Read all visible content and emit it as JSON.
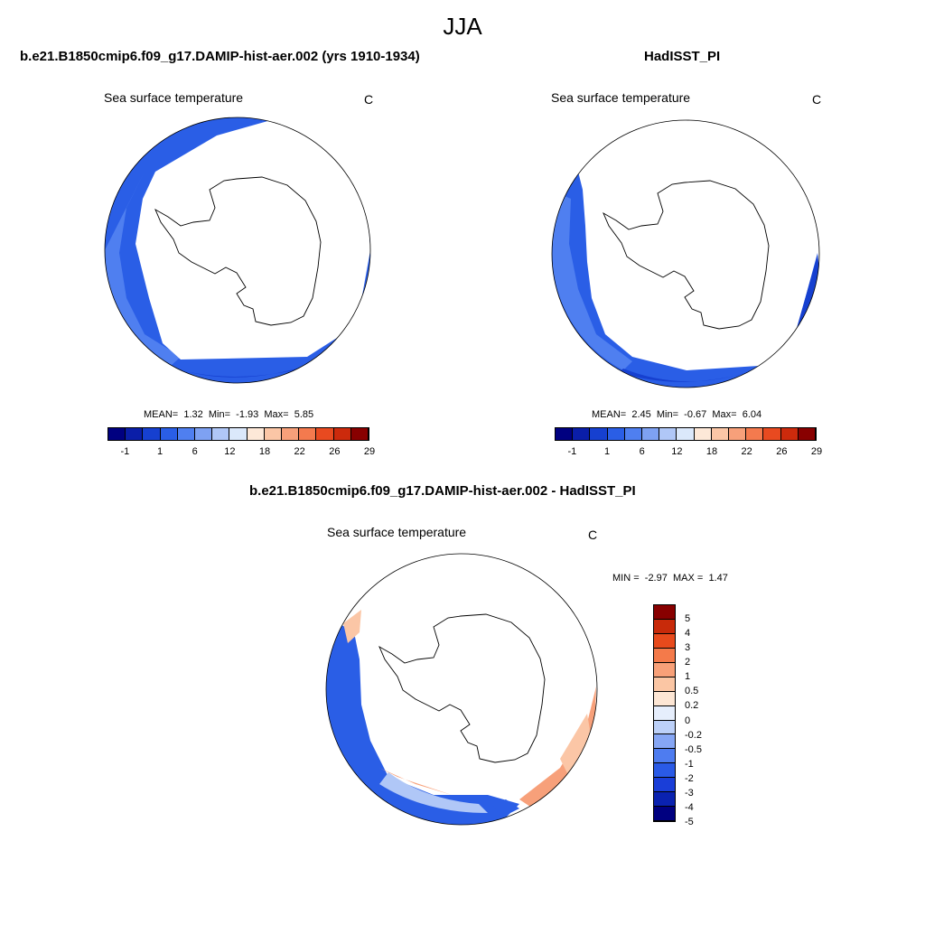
{
  "figure": {
    "title": "JJA"
  },
  "panels": {
    "model": {
      "title": "b.e21.B1850cmip6.f09_g17.DAMIP-hist-aer.002 (yrs 1910-1934)",
      "variable": "Sea surface temperature",
      "units": "C",
      "stats": {
        "mean_label": "MEAN=",
        "mean": "1.32",
        "min_label": "Min=",
        "min": "-1.93",
        "max_label": "Max=",
        "max": "5.85"
      }
    },
    "obs": {
      "title": "HadISST_PI",
      "variable": "Sea surface temperature",
      "units": "C",
      "stats": {
        "mean_label": "MEAN=",
        "mean": "2.45",
        "min_label": "Min=",
        "min": "-0.67",
        "max_label": "Max=",
        "max": "6.04"
      }
    },
    "diff": {
      "title": "b.e21.B1850cmip6.f09_g17.DAMIP-hist-aer.002 - HadISST_PI",
      "variable": "Sea surface temperature",
      "units": "C",
      "stats": {
        "min_label": "MIN =",
        "min": "-2.97",
        "max_label": "MAX =",
        "max": "1.47"
      }
    }
  },
  "colorbars": {
    "abs": {
      "colors": [
        "#000080",
        "#0a1ea8",
        "#1640d0",
        "#2a5ee6",
        "#4f7ff0",
        "#7ea1f2",
        "#b0c7f7",
        "#dbe8fb",
        "#fde8d8",
        "#fbc6a6",
        "#f7a07a",
        "#f47a4e",
        "#e84a20",
        "#cc2a0c",
        "#880000"
      ],
      "labels": [
        "-1",
        "1",
        "6",
        "12",
        "18",
        "22",
        "26",
        "29"
      ]
    },
    "diff": {
      "colors": [
        "#000080",
        "#0a22b0",
        "#1a3ed8",
        "#2a5ae6",
        "#4e7cf0",
        "#86a6f4",
        "#bcd0f8",
        "#e6eefc",
        "#fde6d4",
        "#fbc6a4",
        "#f8a078",
        "#f47a4a",
        "#e84a1c",
        "#c82a0a",
        "#880000"
      ],
      "labels": [
        "5",
        "4",
        "3",
        "2",
        "1",
        "0.5",
        "0.2",
        "0",
        "-0.2",
        "-0.5",
        "-1",
        "-2",
        "-3",
        "-4",
        "-5"
      ]
    }
  }
}
